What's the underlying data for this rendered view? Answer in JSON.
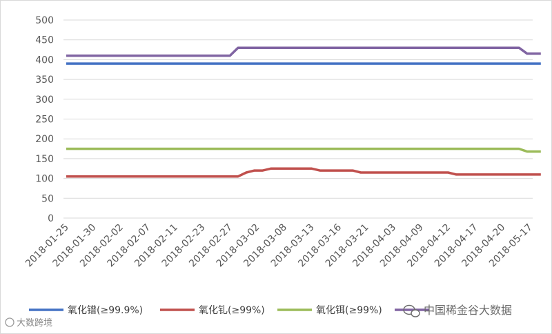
{
  "chart_data": {
    "type": "line",
    "categories": [
      "2018-01-25",
      "2018-01-30",
      "2018-02-02",
      "2018-02-07",
      "2018-02-11",
      "2018-02-23",
      "2018-02-27",
      "2018-03-02",
      "2018-03-08",
      "2018-03-13",
      "2018-03-16",
      "2018-03-21",
      "2018-04-03",
      "2018-04-09",
      "2018-04-12",
      "2018-04-17",
      "2018-04-20",
      "2018-05-17"
    ],
    "ylim": [
      0,
      500
    ],
    "yticks": [
      0,
      50,
      100,
      150,
      200,
      250,
      300,
      350,
      400,
      450,
      500
    ],
    "grid": true,
    "legend": "bottom",
    "series": [
      {
        "name": "氧化镨(≥99.9%)",
        "color": "#4472C4",
        "points": [
          [
            0,
            390
          ],
          [
            17.4,
            390
          ]
        ]
      },
      {
        "name": "氧化钆(≥99%)",
        "color": "#C0504D",
        "points": [
          [
            0,
            105
          ],
          [
            6.3,
            105
          ],
          [
            6.6,
            115
          ],
          [
            6.9,
            120
          ],
          [
            7.2,
            120
          ],
          [
            7.5,
            125
          ],
          [
            9.0,
            125
          ],
          [
            9.3,
            120
          ],
          [
            10.5,
            120
          ],
          [
            10.8,
            115
          ],
          [
            14.0,
            115
          ],
          [
            14.3,
            110
          ],
          [
            17.4,
            110
          ]
        ]
      },
      {
        "name": "氧化铒(≥99%)",
        "color": "#9BBB59",
        "points": [
          [
            0,
            175
          ],
          [
            16.6,
            175
          ],
          [
            16.9,
            168
          ],
          [
            17.4,
            168
          ]
        ]
      },
      {
        "name": "",
        "color": "#8064A2",
        "points": [
          [
            0,
            410
          ],
          [
            6.0,
            410
          ],
          [
            6.3,
            430
          ],
          [
            16.6,
            430
          ],
          [
            16.9,
            415
          ],
          [
            17.4,
            415
          ]
        ]
      }
    ]
  },
  "watermarks": {
    "left": "大数跨境",
    "right": "中国稀金谷大数据"
  }
}
